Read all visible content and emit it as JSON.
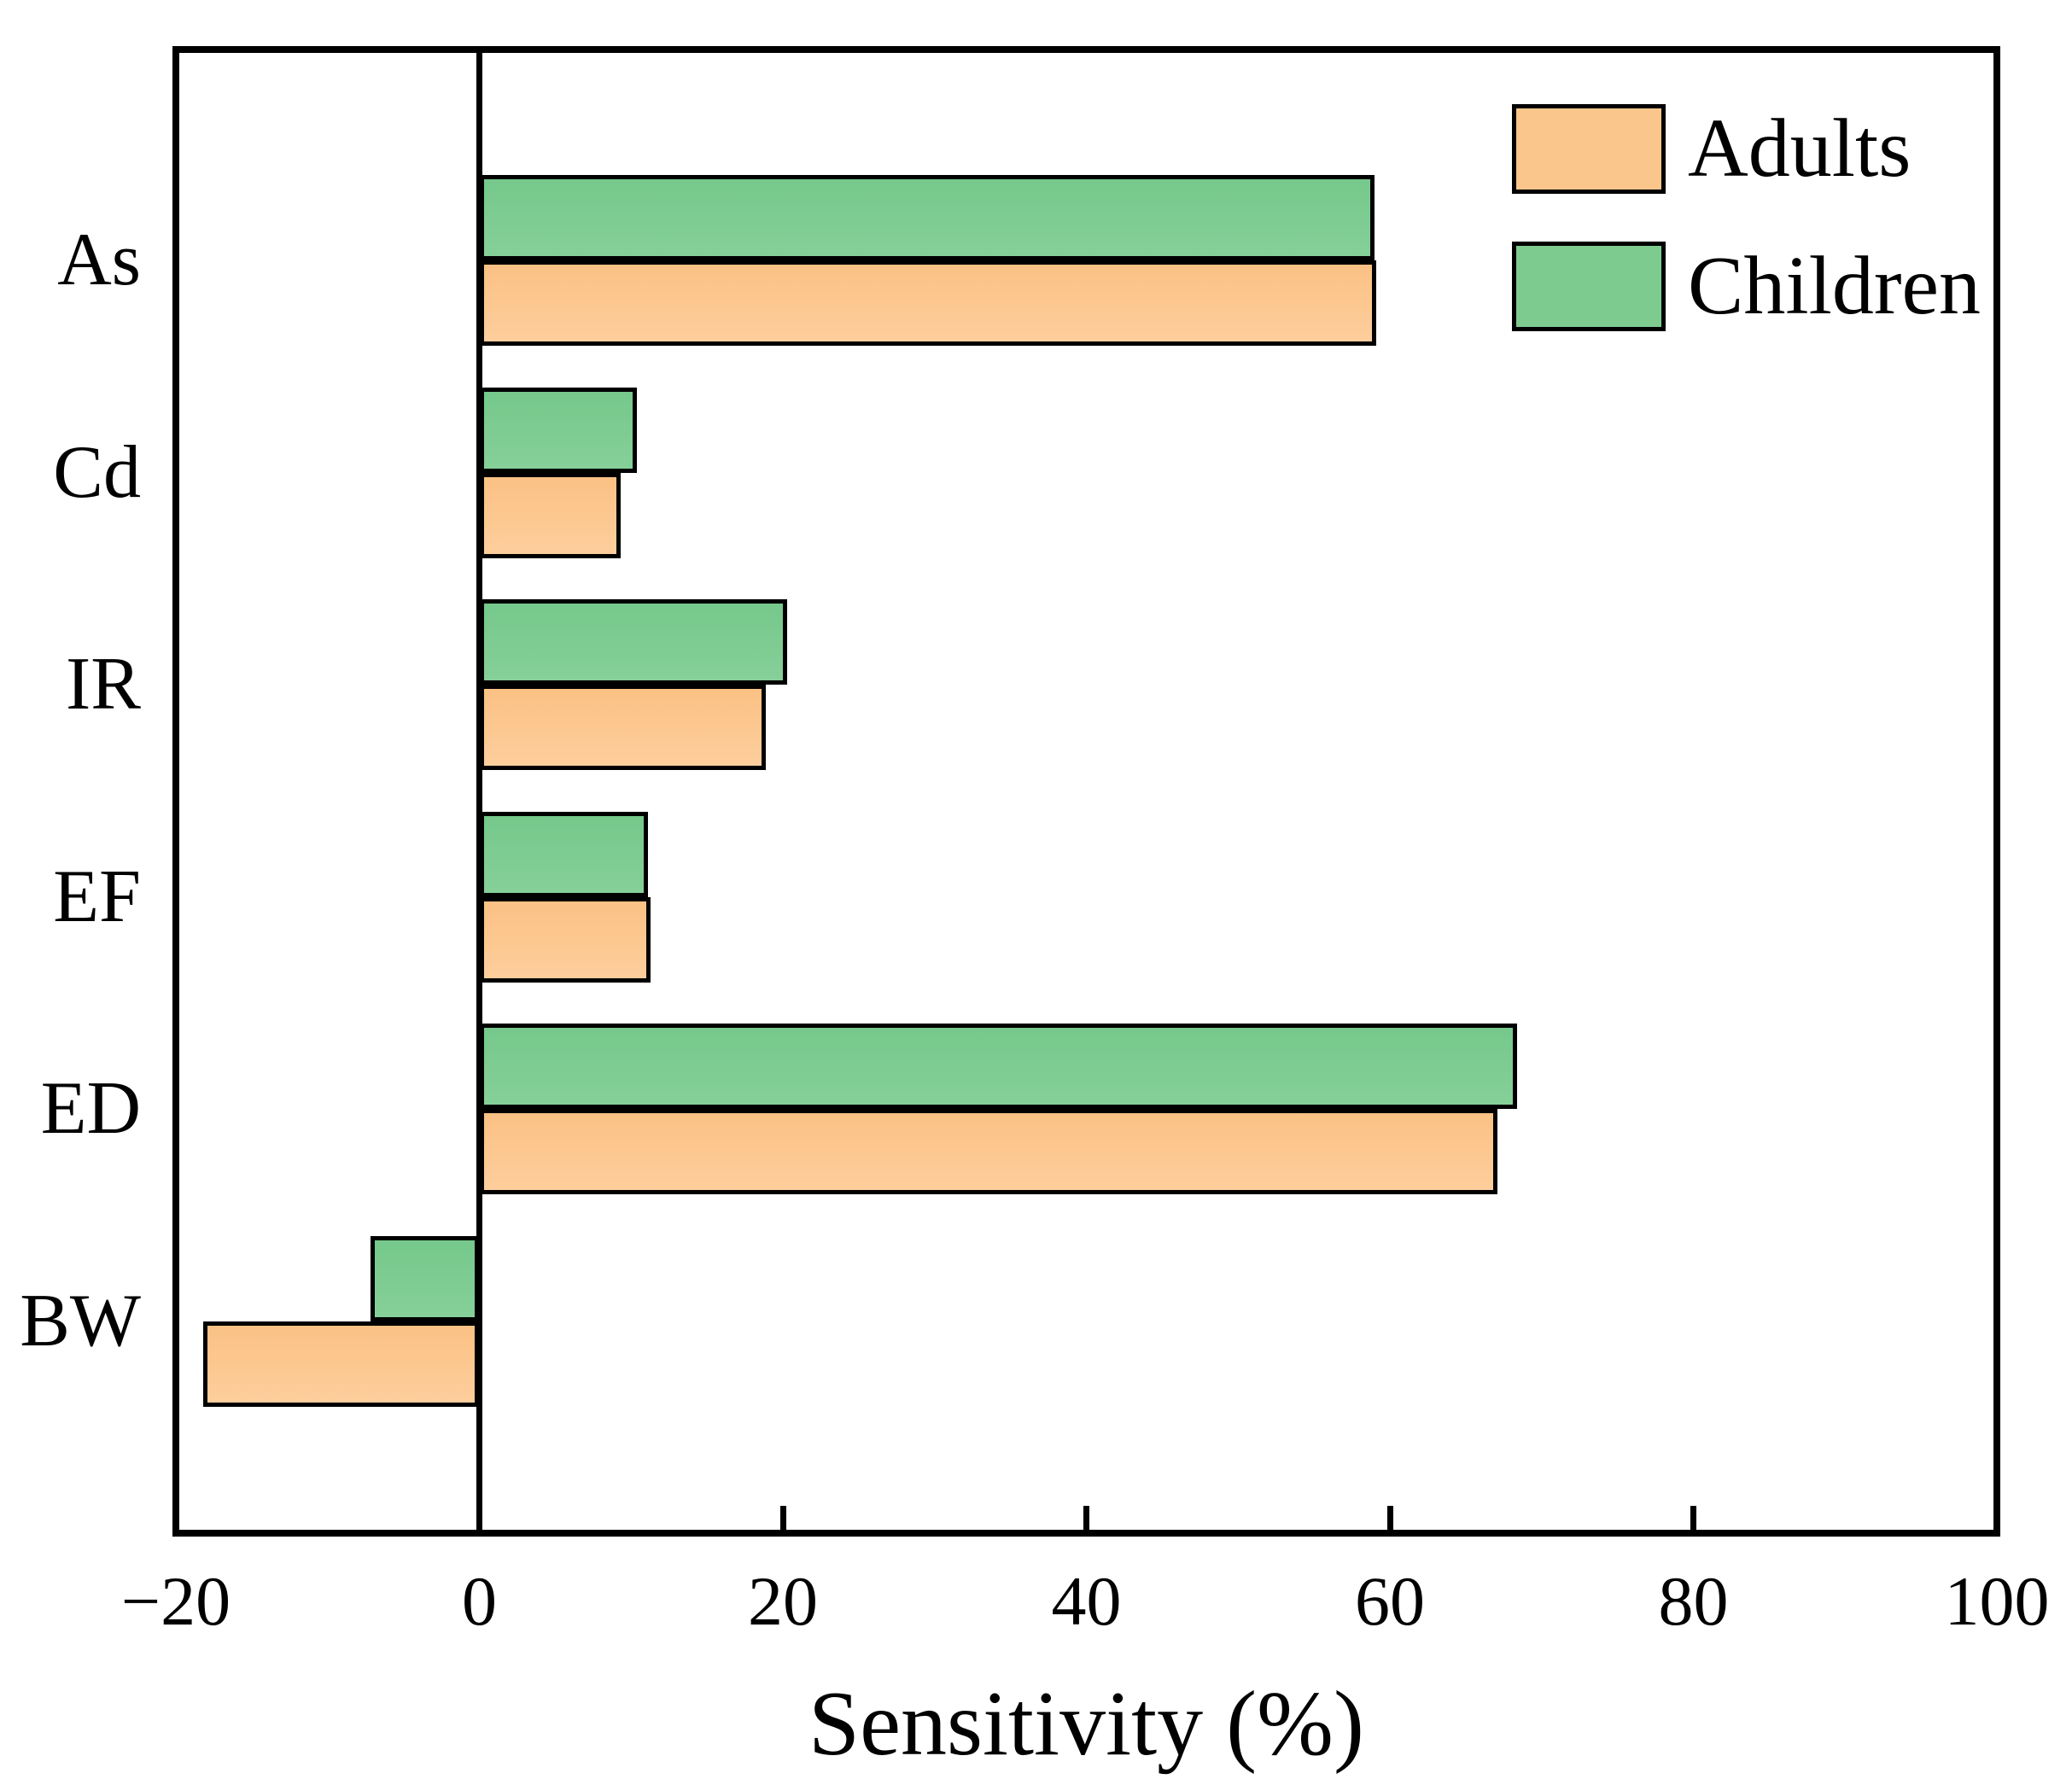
{
  "chart_data": {
    "type": "bar",
    "orientation": "horizontal",
    "title": "",
    "xlabel": "Sensitivity (%)",
    "ylabel": "",
    "categories": [
      "As",
      "Cd",
      "IR",
      "EF",
      "ED",
      "BW"
    ],
    "series": [
      {
        "name": "Adults",
        "color": "#fbc68c",
        "values": [
          59.1,
          9.3,
          18.9,
          11.3,
          67.1,
          -18.2
        ]
      },
      {
        "name": "Children",
        "color": "#7ecb90",
        "values": [
          59.0,
          10.4,
          20.3,
          11.1,
          68.4,
          -7.2
        ]
      }
    ],
    "xlim": [
      -20,
      100
    ],
    "xticks": [
      -20,
      0,
      20,
      40,
      60,
      80,
      100
    ],
    "xtick_labels": [
      "−20",
      "0",
      "20",
      "40",
      "60",
      "80",
      "100"
    ],
    "grid": false,
    "legend_position": "top-right",
    "layout_note": "Children bar drawn above Adults bar in each category pair; vertical zero line at x=0"
  }
}
